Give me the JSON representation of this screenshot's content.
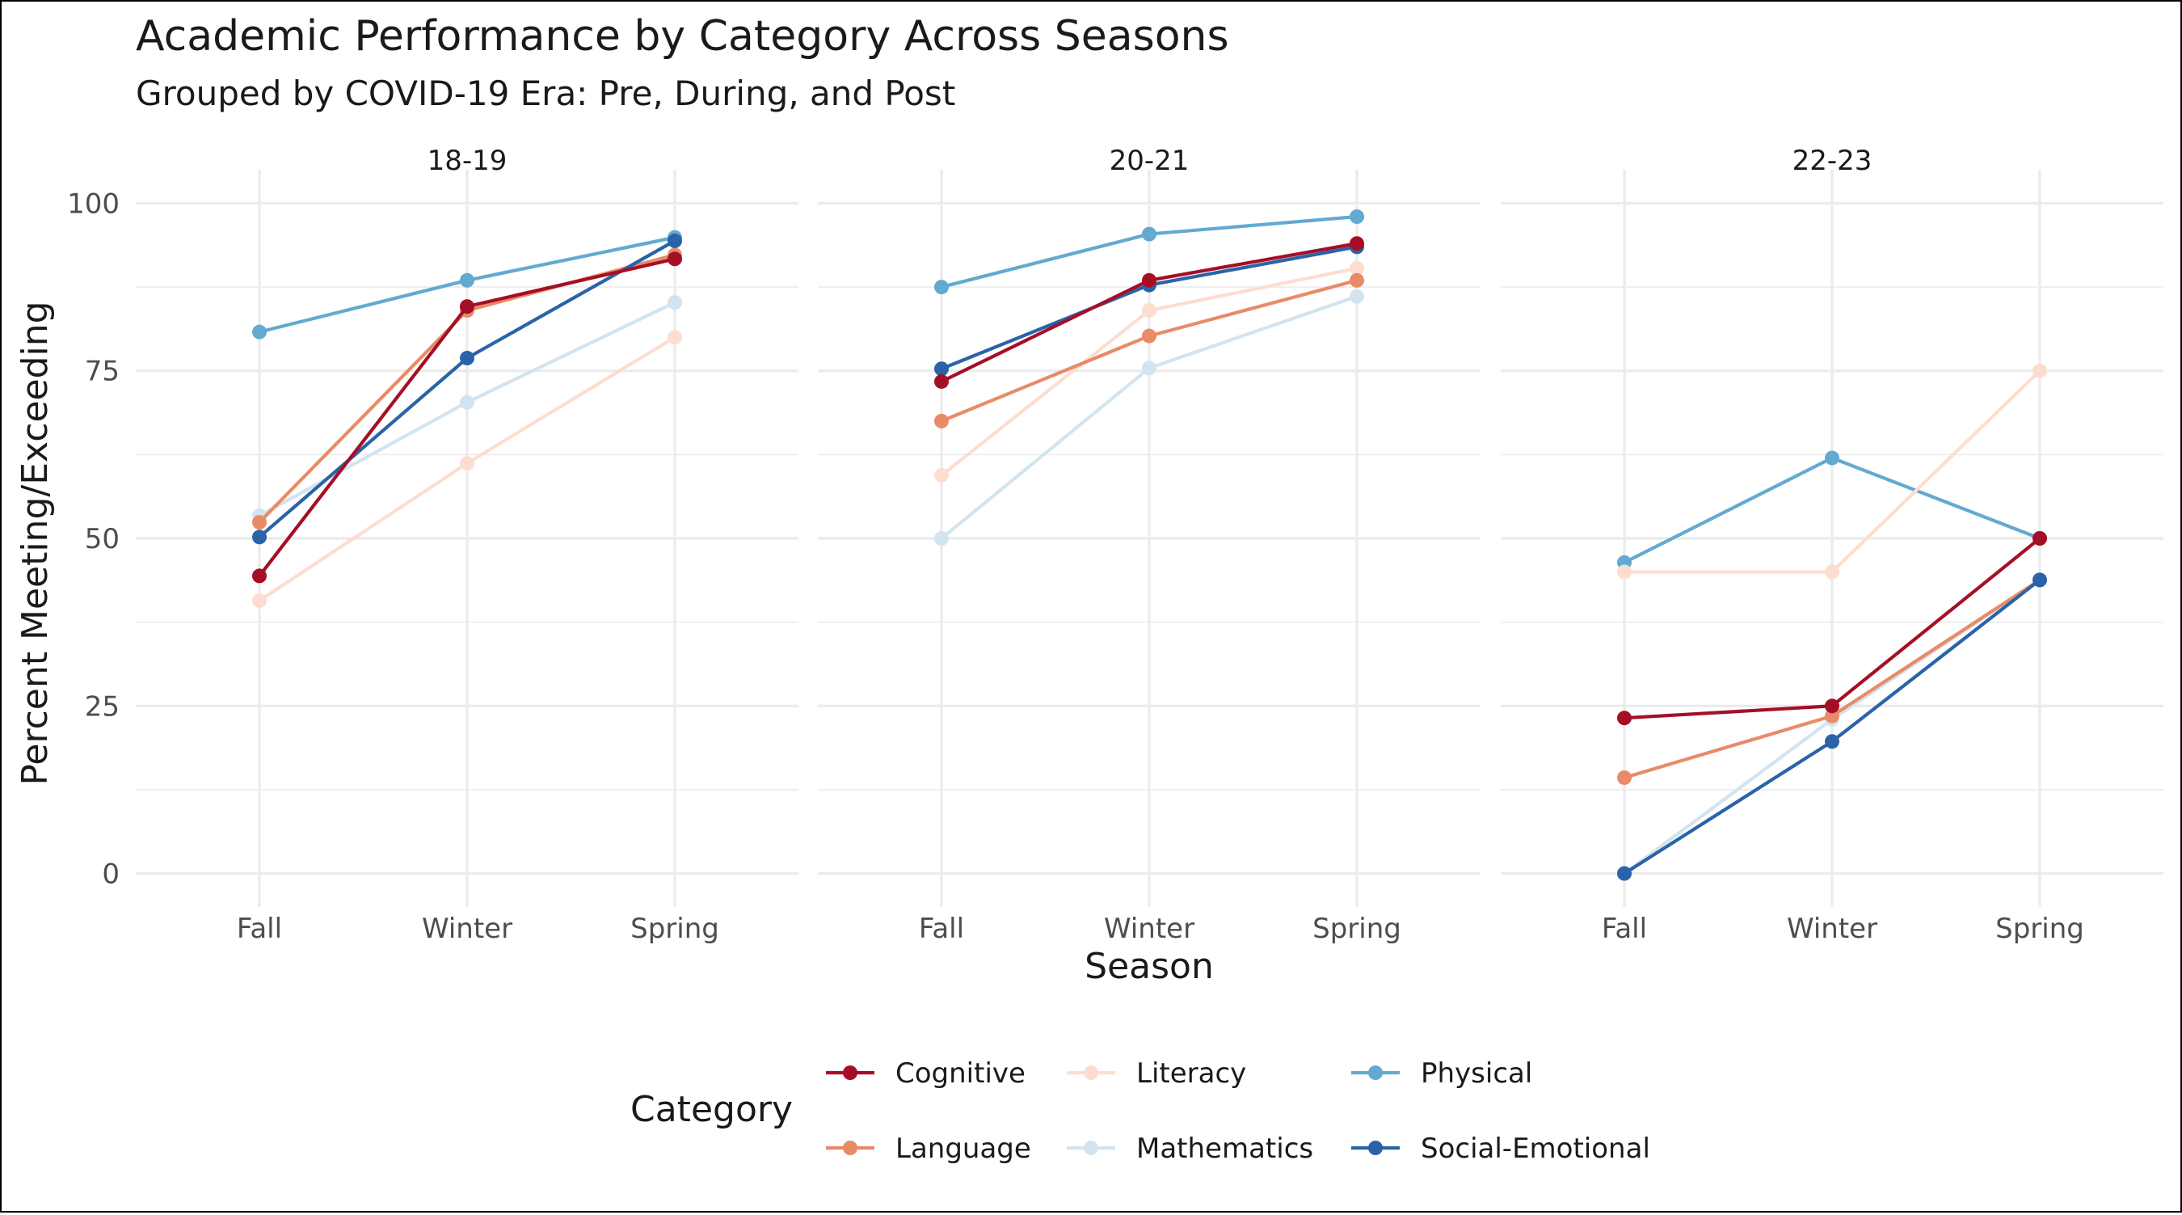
{
  "chart_data": {
    "type": "line",
    "title": "Academic Performance by Category Across Seasons",
    "subtitle": "Grouped by COVID-19 Era: Pre, During, and Post",
    "xlabel": "Season",
    "ylabel": "Percent Meeting/Exceeding",
    "categories": [
      "Fall",
      "Winter",
      "Spring"
    ],
    "ylim": [
      -5,
      105
    ],
    "yticks": [
      0,
      25,
      50,
      75,
      100
    ],
    "grid": true,
    "legend": {
      "title": "Category",
      "position": "bottom",
      "entries": [
        "Cognitive",
        "Language",
        "Literacy",
        "Mathematics",
        "Physical",
        "Social-Emotional"
      ]
    },
    "colors": {
      "Cognitive": "#a50f26",
      "Language": "#e88b67",
      "Literacy": "#fdddd0",
      "Mathematics": "#d2e4ef",
      "Physical": "#64a9cf",
      "Social-Emotional": "#2a63a8"
    },
    "panels": [
      {
        "label": "18-19",
        "series": [
          {
            "name": "Cognitive",
            "values": [
              44.4,
              84.6,
              91.7
            ]
          },
          {
            "name": "Language",
            "values": [
              52.4,
              84.0,
              92.3
            ]
          },
          {
            "name": "Literacy",
            "values": [
              40.7,
              61.2,
              80.0
            ]
          },
          {
            "name": "Mathematics",
            "values": [
              53.4,
              70.3,
              85.2
            ]
          },
          {
            "name": "Physical",
            "values": [
              80.8,
              88.5,
              94.9
            ]
          },
          {
            "name": "Social-Emotional",
            "values": [
              50.2,
              76.9,
              94.4
            ]
          }
        ]
      },
      {
        "label": "20-21",
        "series": [
          {
            "name": "Cognitive",
            "values": [
              73.4,
              88.5,
              94.0
            ]
          },
          {
            "name": "Language",
            "values": [
              67.5,
              80.2,
              88.5
            ]
          },
          {
            "name": "Literacy",
            "values": [
              59.4,
              84.0,
              90.3
            ]
          },
          {
            "name": "Mathematics",
            "values": [
              50.0,
              75.4,
              86.1
            ]
          },
          {
            "name": "Physical",
            "values": [
              87.5,
              95.4,
              98.0
            ]
          },
          {
            "name": "Social-Emotional",
            "values": [
              75.3,
              87.8,
              93.5
            ]
          }
        ]
      },
      {
        "label": "22-23",
        "series": [
          {
            "name": "Cognitive",
            "values": [
              23.2,
              25.0,
              50.0
            ]
          },
          {
            "name": "Language",
            "values": [
              14.3,
              23.5,
              43.8
            ]
          },
          {
            "name": "Literacy",
            "values": [
              45.0,
              45.0,
              75.0
            ]
          },
          {
            "name": "Mathematics",
            "values": [
              0.0,
              23.0,
              43.8
            ]
          },
          {
            "name": "Physical",
            "values": [
              46.4,
              62.0,
              50.0
            ]
          },
          {
            "name": "Social-Emotional",
            "values": [
              0.0,
              19.7,
              43.8
            ]
          }
        ]
      }
    ]
  }
}
